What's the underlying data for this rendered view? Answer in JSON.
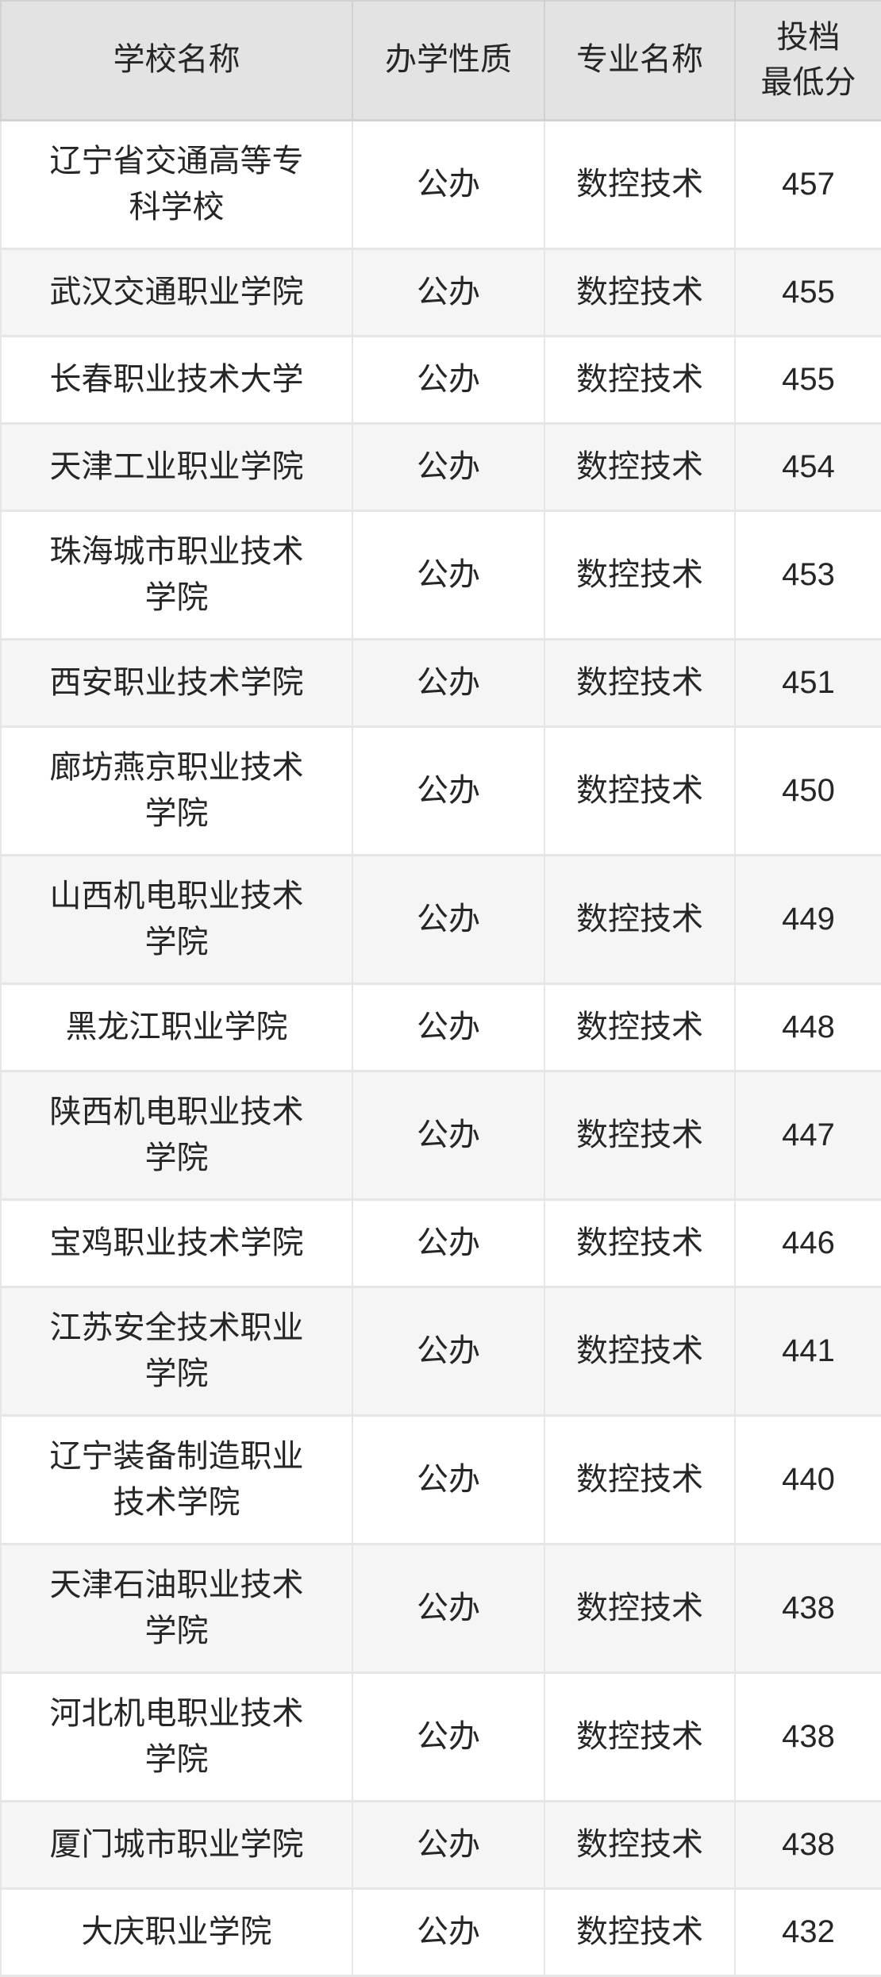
{
  "chart_data": {
    "type": "table",
    "columns": [
      "学校名称",
      "办学性质",
      "专业名称",
      "投档最低分"
    ],
    "rows": [
      [
        "辽宁省交通高等专科学校",
        "公办",
        "数控技术",
        457
      ],
      [
        "武汉交通职业学院",
        "公办",
        "数控技术",
        455
      ],
      [
        "长春职业技术大学",
        "公办",
        "数控技术",
        455
      ],
      [
        "天津工业职业学院",
        "公办",
        "数控技术",
        454
      ],
      [
        "珠海城市职业技术学院",
        "公办",
        "数控技术",
        453
      ],
      [
        "西安职业技术学院",
        "公办",
        "数控技术",
        451
      ],
      [
        "廊坊燕京职业技术学院",
        "公办",
        "数控技术",
        450
      ],
      [
        "山西机电职业技术学院",
        "公办",
        "数控技术",
        449
      ],
      [
        "黑龙江职业学院",
        "公办",
        "数控技术",
        448
      ],
      [
        "陕西机电职业技术学院",
        "公办",
        "数控技术",
        447
      ],
      [
        "宝鸡职业技术学院",
        "公办",
        "数控技术",
        446
      ],
      [
        "江苏安全技术职业学院",
        "公办",
        "数控技术",
        441
      ],
      [
        "辽宁装备制造职业技术学院",
        "公办",
        "数控技术",
        440
      ],
      [
        "天津石油职业技术学院",
        "公办",
        "数控技术",
        438
      ],
      [
        "河北机电职业技术学院",
        "公办",
        "数控技术",
        438
      ],
      [
        "厦门城市职业学院",
        "公办",
        "数控技术",
        438
      ],
      [
        "大庆职业学院",
        "公办",
        "数控技术",
        432
      ]
    ],
    "title": "",
    "legend": false,
    "grid": true
  },
  "table": {
    "header": [
      "学校名称",
      "办学性质",
      "专业名称",
      "投档\n最低分"
    ],
    "display_rows": [
      [
        "辽宁省交通高等专\n科学校",
        "公办",
        "数控技术",
        "457"
      ],
      [
        "武汉交通职业学院",
        "公办",
        "数控技术",
        "455"
      ],
      [
        "长春职业技术大学",
        "公办",
        "数控技术",
        "455"
      ],
      [
        "天津工业职业学院",
        "公办",
        "数控技术",
        "454"
      ],
      [
        "珠海城市职业技术\n学院",
        "公办",
        "数控技术",
        "453"
      ],
      [
        "西安职业技术学院",
        "公办",
        "数控技术",
        "451"
      ],
      [
        "廊坊燕京职业技术\n学院",
        "公办",
        "数控技术",
        "450"
      ],
      [
        "山西机电职业技术\n学院",
        "公办",
        "数控技术",
        "449"
      ],
      [
        "黑龙江职业学院",
        "公办",
        "数控技术",
        "448"
      ],
      [
        "陕西机电职业技术\n学院",
        "公办",
        "数控技术",
        "447"
      ],
      [
        "宝鸡职业技术学院",
        "公办",
        "数控技术",
        "446"
      ],
      [
        "江苏安全技术职业\n学院",
        "公办",
        "数控技术",
        "441"
      ],
      [
        "辽宁装备制造职业\n技术学院",
        "公办",
        "数控技术",
        "440"
      ],
      [
        "天津石油职业技术\n学院",
        "公办",
        "数控技术",
        "438"
      ],
      [
        "河北机电职业技术\n学院",
        "公办",
        "数控技术",
        "438"
      ],
      [
        "厦门城市职业学院",
        "公办",
        "数控技术",
        "438"
      ],
      [
        "大庆职业学院",
        "公办",
        "数控技术",
        "432"
      ]
    ]
  },
  "colors": {
    "header_bg": "#e3e3e3",
    "stripe_bg": "#f5f5f5",
    "row_bg": "#ffffff",
    "border": "#e0e0e0",
    "header_border": "#d2d2d2",
    "text": "#262626"
  }
}
